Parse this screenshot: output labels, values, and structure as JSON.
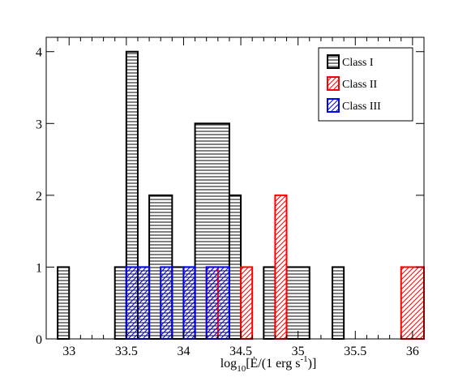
{
  "chart_data": {
    "type": "bar",
    "histogram": true,
    "bin_width": 0.1,
    "xlim": [
      32.8,
      36.1
    ],
    "ylim": [
      0,
      4.2
    ],
    "x_ticks": [
      33,
      33.5,
      34,
      34.5,
      35,
      35.5,
      36
    ],
    "x_tick_labels": [
      "33",
      "33.5",
      "34",
      "34.5",
      "35",
      "35.5",
      "36"
    ],
    "y_ticks": [
      0,
      1,
      2,
      3,
      4
    ],
    "y_tick_labels": [
      "0",
      "1",
      "2",
      "3",
      "4"
    ],
    "xlabel": {
      "base": "log",
      "sub": "10",
      "mid": "[Ė/(1 erg s",
      "sup": "-1",
      "tail": ")]"
    },
    "ylabel": "",
    "legend_position": "top-right",
    "grid": false,
    "series": [
      {
        "name": "Class I",
        "color": "#000000",
        "pattern": "horizontal-lines",
        "bins": [
          {
            "x0": 32.9,
            "x1": 33.0,
            "y": 1
          },
          {
            "x0": 33.4,
            "x1": 33.5,
            "y": 1
          },
          {
            "x0": 33.5,
            "x1": 33.6,
            "y": 4
          },
          {
            "x0": 33.6,
            "x1": 33.7,
            "y": 1
          },
          {
            "x0": 33.7,
            "x1": 33.9,
            "y": 2
          },
          {
            "x0": 33.9,
            "x1": 34.0,
            "y": 1
          },
          {
            "x0": 34.0,
            "x1": 34.1,
            "y": 1
          },
          {
            "x0": 34.1,
            "x1": 34.4,
            "y": 3
          },
          {
            "x0": 34.4,
            "x1": 34.5,
            "y": 2
          },
          {
            "x0": 34.7,
            "x1": 34.8,
            "y": 1
          },
          {
            "x0": 34.9,
            "x1": 35.1,
            "y": 1
          },
          {
            "x0": 35.3,
            "x1": 35.4,
            "y": 1
          }
        ]
      },
      {
        "name": "Class II",
        "color": "#ff0000",
        "pattern": "diagonal-lines",
        "bins": [
          {
            "x0": 34.2,
            "x1": 34.3,
            "y": 1
          },
          {
            "x0": 34.5,
            "x1": 34.6,
            "y": 1
          },
          {
            "x0": 34.8,
            "x1": 34.9,
            "y": 2
          },
          {
            "x0": 35.9,
            "x1": 36.1,
            "y": 1
          }
        ]
      },
      {
        "name": "Class III",
        "color": "#0000ff",
        "pattern": "diagonal-lines",
        "bins": [
          {
            "x0": 33.5,
            "x1": 33.7,
            "y": 1
          },
          {
            "x0": 33.8,
            "x1": 33.9,
            "y": 1
          },
          {
            "x0": 34.0,
            "x1": 34.1,
            "y": 1
          },
          {
            "x0": 34.2,
            "x1": 34.4,
            "y": 1
          }
        ]
      }
    ]
  }
}
